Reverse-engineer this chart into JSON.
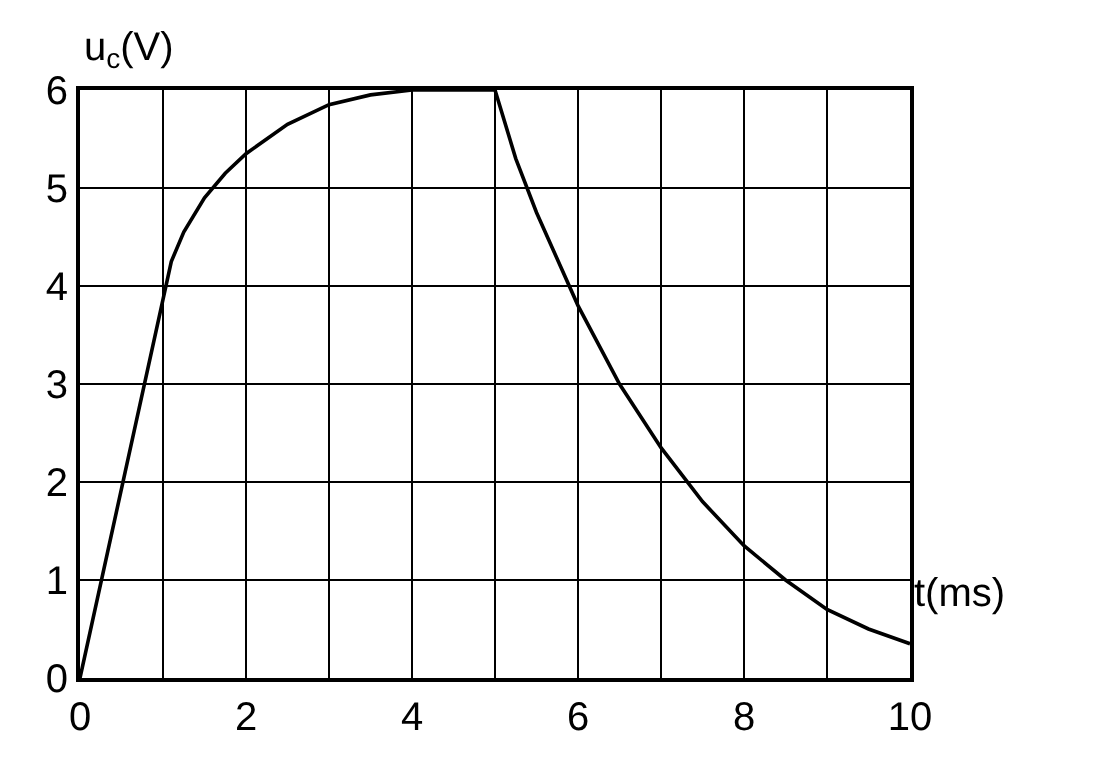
{
  "chart_data": {
    "type": "line",
    "xlabel": "t(ms)",
    "ylabel": "u$_{c}$(V)",
    "x": [
      0,
      1.1,
      1.25,
      1.5,
      1.75,
      2,
      2.5,
      3,
      3.5,
      4,
      5,
      5.25,
      5.5,
      6,
      6.5,
      7,
      7.5,
      8,
      8.5,
      9,
      9.5,
      10
    ],
    "series": [
      {
        "color": "#000000",
        "values": [
          0,
          4.25,
          4.55,
          4.9,
          5.15,
          5.35,
          5.65,
          5.85,
          5.95,
          6,
          6,
          5.3,
          4.75,
          3.8,
          3.0,
          2.35,
          1.8,
          1.35,
          1.0,
          0.7,
          0.5,
          0.35
        ]
      }
    ],
    "xlim": [
      0,
      10
    ],
    "ylim": [
      0,
      6
    ],
    "xticks": [
      0,
      {
        "value": 1,
        "label": null
      },
      2,
      {
        "value": 3,
        "label": null
      },
      4,
      {
        "value": 5,
        "label": null
      },
      6,
      {
        "value": 7,
        "label": null
      },
      8,
      {
        "value": 9,
        "label": null
      },
      10
    ],
    "yticks": [
      0,
      1,
      2,
      3,
      4,
      5,
      6
    ],
    "grid": true,
    "marker": "none",
    "line_style": "solid"
  }
}
